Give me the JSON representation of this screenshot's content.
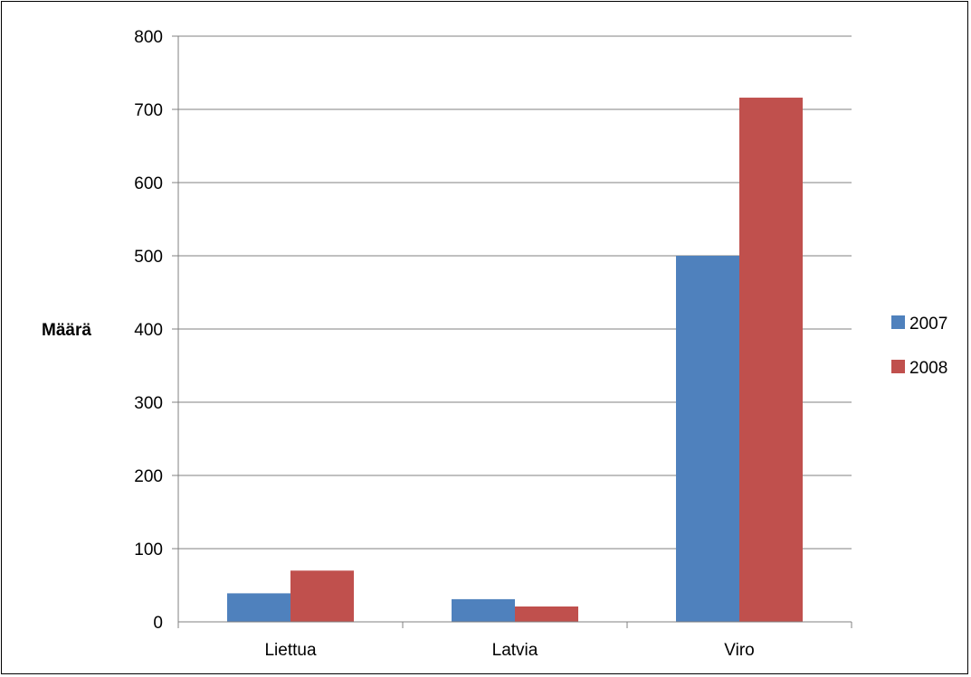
{
  "chart_data": {
    "type": "bar",
    "categories": [
      "Liettua",
      "Latvia",
      "Viro"
    ],
    "series": [
      {
        "name": "2007",
        "values": [
          39,
          31,
          500
        ],
        "color": "#4f81bd"
      },
      {
        "name": "2008",
        "values": [
          70,
          21,
          716
        ],
        "color": "#c0504d"
      }
    ],
    "title": "",
    "xlabel": "",
    "ylabel": "Määrä",
    "ylim": [
      0,
      800
    ],
    "yticks": [
      "0",
      "100",
      "200",
      "300",
      "400",
      "500",
      "600",
      "700",
      "800"
    ],
    "grid": true,
    "legend": "right"
  }
}
